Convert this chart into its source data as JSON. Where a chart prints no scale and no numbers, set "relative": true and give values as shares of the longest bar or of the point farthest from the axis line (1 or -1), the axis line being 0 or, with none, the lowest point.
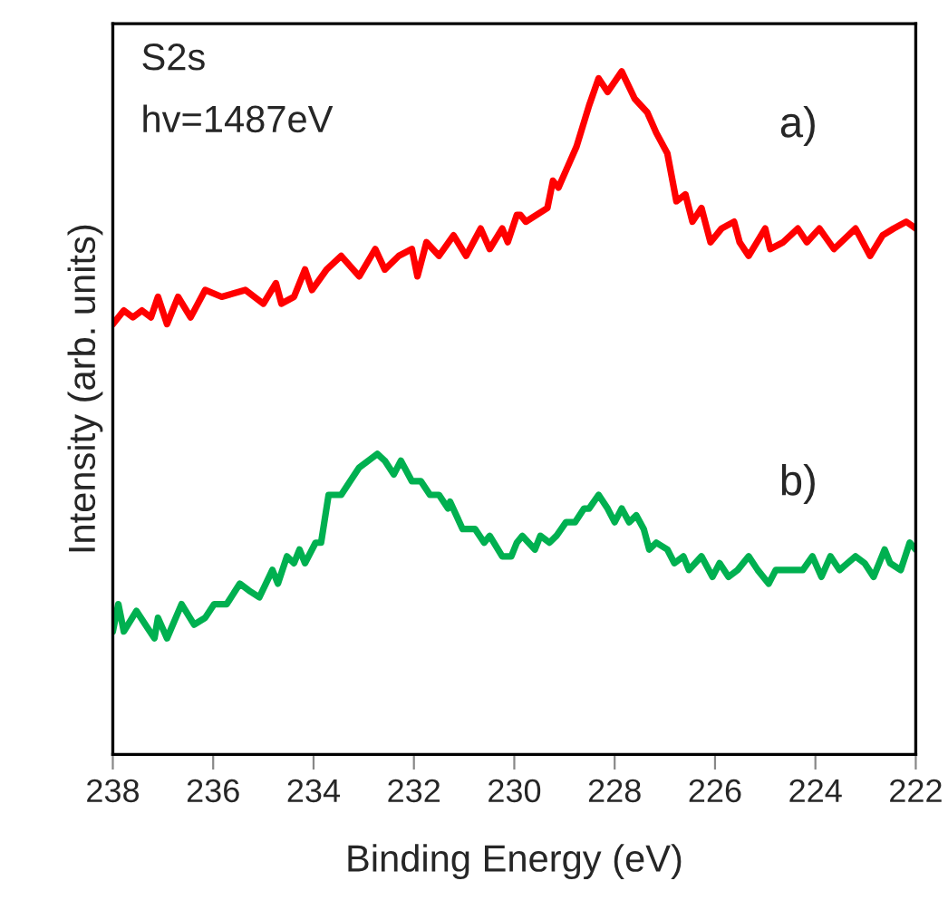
{
  "chart_data": {
    "type": "line",
    "relative": true,
    "xlabel": "Binding Energy (eV)",
    "ylabel": "Intensity (arb. units)",
    "annotations": [
      "S2s",
      "hv=1487eV"
    ],
    "xlim": [
      238,
      222
    ],
    "xticks": [
      238,
      236,
      234,
      232,
      230,
      228,
      226,
      224,
      222
    ],
    "grid": false,
    "legend": false,
    "line_style": "solid",
    "marker": "none",
    "series": [
      {
        "name": "a)",
        "color": "#ff0000",
        "x": [
          238.0,
          237.78,
          237.6,
          237.42,
          237.24,
          237.1,
          236.92,
          236.7,
          236.45,
          236.16,
          235.83,
          235.36,
          235.0,
          234.75,
          234.64,
          234.39,
          234.17,
          234.03,
          233.74,
          233.45,
          233.09,
          232.77,
          232.58,
          232.3,
          232.04,
          231.93,
          231.75,
          231.5,
          231.21,
          230.96,
          230.67,
          230.49,
          230.24,
          230.13,
          229.95,
          229.88,
          229.77,
          229.34,
          229.23,
          229.12,
          228.94,
          228.76,
          228.51,
          228.32,
          228.14,
          227.86,
          227.6,
          227.35,
          227.17,
          226.95,
          226.77,
          226.59,
          226.45,
          226.27,
          226.09,
          225.87,
          225.62,
          225.51,
          225.33,
          225.0,
          224.9,
          224.64,
          224.35,
          224.17,
          223.92,
          223.63,
          223.2,
          222.91,
          222.66,
          222.44,
          222.19,
          222.0
        ],
        "values": [
          0.63,
          0.65,
          0.64,
          0.65,
          0.64,
          0.67,
          0.63,
          0.67,
          0.64,
          0.68,
          0.67,
          0.68,
          0.66,
          0.69,
          0.66,
          0.67,
          0.71,
          0.68,
          0.71,
          0.73,
          0.7,
          0.74,
          0.71,
          0.73,
          0.74,
          0.7,
          0.75,
          0.73,
          0.76,
          0.73,
          0.77,
          0.74,
          0.77,
          0.75,
          0.79,
          0.79,
          0.78,
          0.8,
          0.84,
          0.83,
          0.86,
          0.89,
          0.95,
          0.99,
          0.97,
          1.0,
          0.96,
          0.94,
          0.91,
          0.88,
          0.81,
          0.82,
          0.78,
          0.8,
          0.75,
          0.77,
          0.78,
          0.75,
          0.73,
          0.77,
          0.74,
          0.75,
          0.77,
          0.75,
          0.77,
          0.74,
          0.77,
          0.73,
          0.76,
          0.77,
          0.78,
          0.77
        ]
      },
      {
        "name": "b)",
        "color": "#00b050",
        "x": [
          238.0,
          237.89,
          237.78,
          237.53,
          237.35,
          237.17,
          237.1,
          236.92,
          236.63,
          236.38,
          236.16,
          235.98,
          235.73,
          235.47,
          235.29,
          235.08,
          234.82,
          234.71,
          234.53,
          234.39,
          234.28,
          234.17,
          233.96,
          233.85,
          233.7,
          233.45,
          233.09,
          232.91,
          232.73,
          232.58,
          232.4,
          232.26,
          232.04,
          231.86,
          231.68,
          231.5,
          231.32,
          231.28,
          231.03,
          230.78,
          230.6,
          230.49,
          230.24,
          230.06,
          229.95,
          229.84,
          229.59,
          229.48,
          229.3,
          229.16,
          228.97,
          228.79,
          228.61,
          228.51,
          228.32,
          228.14,
          228.0,
          227.86,
          227.71,
          227.57,
          227.42,
          227.31,
          227.17,
          226.95,
          226.81,
          226.63,
          226.52,
          226.27,
          226.05,
          225.91,
          225.73,
          225.55,
          225.33,
          225.15,
          224.93,
          224.79,
          224.53,
          224.25,
          224.06,
          223.88,
          223.7,
          223.52,
          223.2,
          223.02,
          222.84,
          222.73,
          222.62,
          222.51,
          222.3,
          222.12,
          222.0
        ],
        "values": [
          0.18,
          0.22,
          0.18,
          0.21,
          0.19,
          0.17,
          0.2,
          0.17,
          0.22,
          0.19,
          0.2,
          0.22,
          0.22,
          0.25,
          0.24,
          0.23,
          0.27,
          0.25,
          0.29,
          0.28,
          0.3,
          0.28,
          0.31,
          0.31,
          0.38,
          0.38,
          0.42,
          0.43,
          0.44,
          0.43,
          0.41,
          0.43,
          0.4,
          0.4,
          0.38,
          0.38,
          0.36,
          0.37,
          0.33,
          0.33,
          0.31,
          0.32,
          0.29,
          0.29,
          0.31,
          0.32,
          0.3,
          0.32,
          0.31,
          0.32,
          0.34,
          0.34,
          0.36,
          0.36,
          0.38,
          0.36,
          0.34,
          0.36,
          0.34,
          0.35,
          0.33,
          0.3,
          0.31,
          0.3,
          0.28,
          0.29,
          0.27,
          0.29,
          0.26,
          0.28,
          0.26,
          0.27,
          0.29,
          0.27,
          0.25,
          0.27,
          0.27,
          0.27,
          0.29,
          0.26,
          0.29,
          0.27,
          0.29,
          0.28,
          0.26,
          0.28,
          0.3,
          0.28,
          0.27,
          0.31,
          0.3
        ]
      }
    ]
  }
}
